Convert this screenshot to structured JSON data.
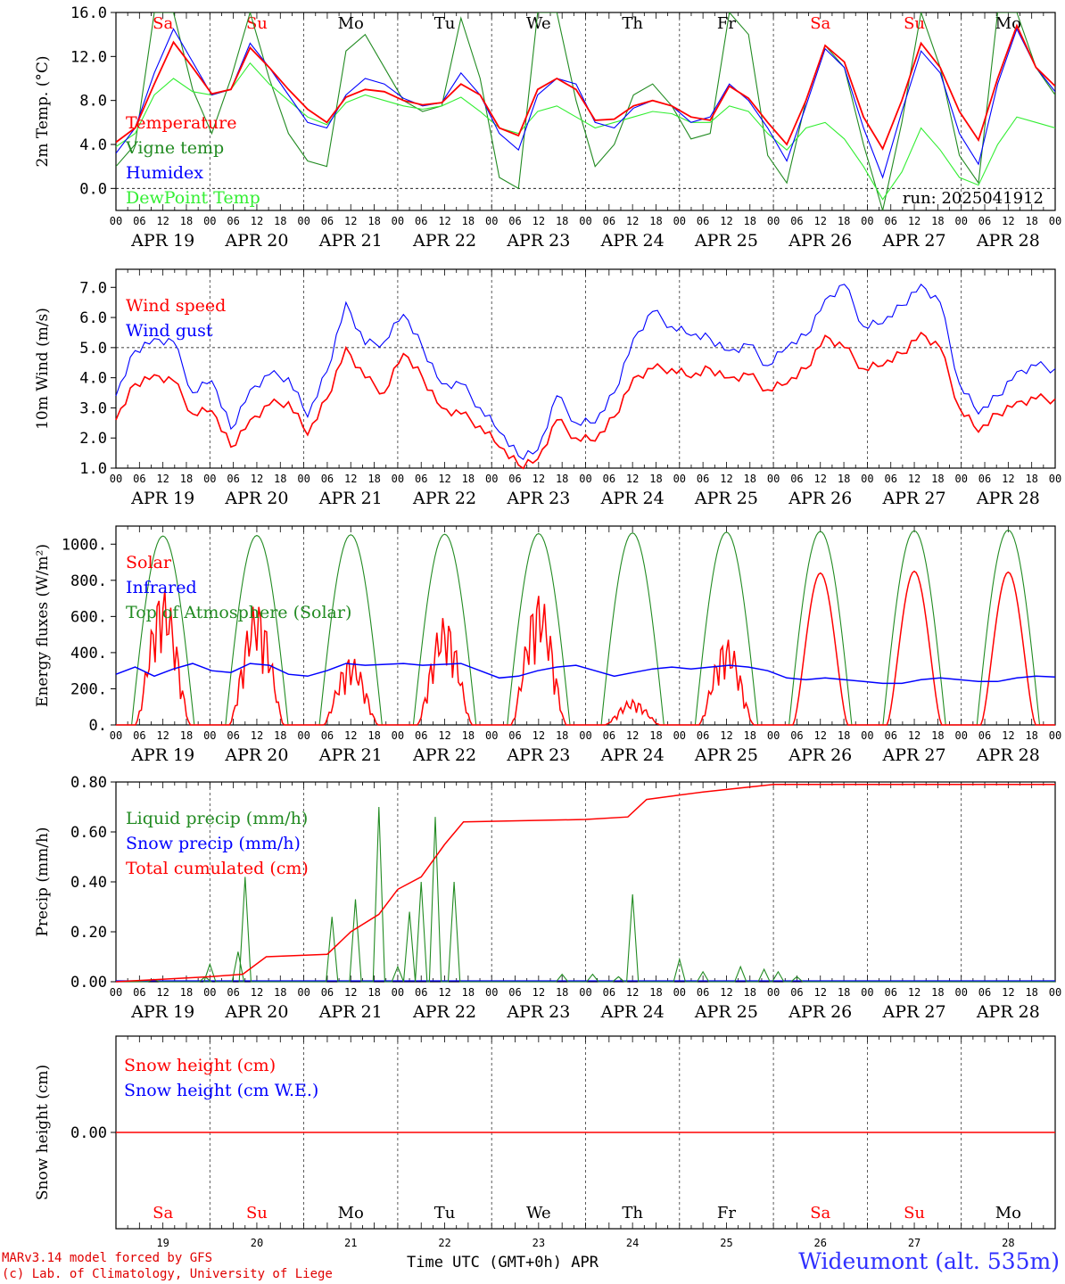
{
  "chart_data": [
    {
      "type": "line",
      "ylabel": "2m Temp. (°C)",
      "ylim": [
        -2,
        16
      ],
      "yticks": [
        "0.0",
        "4.0",
        "8.0",
        "12.0",
        "16.0"
      ],
      "run_label": "run: 2025041912",
      "legend": [
        "Temperature",
        "Vigne temp",
        "Humidex",
        "DewPoint Temp"
      ],
      "day_labels": [
        "Sa",
        "Su",
        "Mo",
        "Tu",
        "We",
        "Th",
        "Fr",
        "Sa",
        "Su",
        "Mo"
      ],
      "date_labels": [
        "APR 19",
        "APR 20",
        "APR 21",
        "APR 22",
        "APR 23",
        "APR 24",
        "APR 25",
        "APR 26",
        "APR 27",
        "APR 28"
      ],
      "x_step_hours": 6,
      "series": [
        {
          "name": "Temperature",
          "color": "#ff0000",
          "values": [
            4.2,
            5.5,
            9.5,
            13.3,
            11.0,
            8.6,
            9.0,
            12.8,
            11.0,
            9.0,
            7.2,
            6.0,
            8.3,
            9.0,
            8.8,
            8.0,
            7.6,
            7.8,
            9.5,
            8.5,
            5.5,
            4.8,
            9.0,
            10.0,
            9.0,
            6.2,
            6.3,
            7.5,
            8.0,
            7.5,
            6.5,
            6.2,
            9.3,
            8.2,
            6.0,
            4.0,
            8.0,
            13.0,
            11.5,
            6.5,
            3.6,
            8.0,
            13.2,
            11.0,
            7.0,
            4.4,
            10.0,
            14.8,
            11.0,
            9.3
          ]
        },
        {
          "name": "Vigne temp",
          "color": "#228b22",
          "values": [
            2.0,
            4.0,
            16.0,
            16.0,
            9.0,
            5.0,
            10.0,
            16.0,
            10.0,
            5.0,
            2.5,
            2.0,
            12.5,
            14.0,
            11.0,
            8.0,
            7.0,
            7.5,
            15.5,
            10.0,
            1.0,
            0.0,
            16.0,
            16.0,
            8.0,
            2.0,
            4.0,
            8.5,
            9.5,
            7.5,
            4.5,
            5.0,
            16.0,
            14.0,
            3.0,
            0.5,
            8.0,
            13.0,
            11.0,
            4.0,
            -2.0,
            6.0,
            16.0,
            11.0,
            3.0,
            0.5,
            16.0,
            16.0,
            11.0,
            8.5
          ]
        },
        {
          "name": "Humidex",
          "color": "#0000ff",
          "values": [
            3.2,
            5.5,
            10.5,
            14.5,
            11.5,
            8.5,
            9.0,
            13.2,
            11.0,
            8.5,
            6.0,
            5.5,
            8.5,
            10.0,
            9.5,
            8.2,
            7.5,
            7.8,
            10.5,
            8.5,
            5.0,
            3.5,
            8.5,
            10.0,
            9.5,
            6.0,
            5.5,
            7.3,
            8.0,
            7.5,
            6.0,
            6.5,
            9.5,
            8.0,
            5.5,
            2.5,
            7.5,
            12.7,
            11.0,
            5.5,
            1.0,
            7.0,
            12.5,
            10.5,
            5.0,
            2.2,
            9.5,
            14.5,
            11.0,
            8.8
          ]
        },
        {
          "name": "DewPoint Temp",
          "color": "#33ee33",
          "values": [
            3.8,
            5.0,
            8.5,
            10.0,
            8.8,
            8.5,
            9.0,
            11.4,
            9.5,
            8.0,
            6.5,
            5.8,
            7.8,
            8.5,
            8.0,
            7.5,
            7.2,
            7.5,
            8.3,
            7.0,
            5.5,
            5.0,
            7.0,
            7.5,
            6.5,
            5.5,
            6.0,
            6.5,
            7.0,
            6.8,
            6.0,
            6.0,
            7.5,
            7.0,
            5.0,
            3.5,
            5.5,
            6.0,
            4.5,
            2.0,
            -1.0,
            1.5,
            5.5,
            3.5,
            1.0,
            0.3,
            4.0,
            6.5,
            6.0,
            5.5
          ]
        }
      ]
    },
    {
      "type": "line",
      "ylabel": "10m Wind (m/s)",
      "ylim": [
        1,
        7.6
      ],
      "yticks": [
        "1.0",
        "2.0",
        "3.0",
        "4.0",
        "5.0",
        "6.0",
        "7.0"
      ],
      "reference_line": 5.0,
      "legend": [
        "Wind speed",
        "Wind gust"
      ],
      "date_labels": [
        "APR 19",
        "APR 20",
        "APR 21",
        "APR 22",
        "APR 23",
        "APR 24",
        "APR 25",
        "APR 26",
        "APR 27",
        "APR 28"
      ],
      "x_step_hours": 6,
      "series": [
        {
          "name": "Wind speed",
          "color": "#ff0000",
          "values": [
            2.6,
            3.8,
            4.1,
            3.9,
            2.8,
            2.9,
            1.7,
            2.6,
            3.1,
            3.2,
            2.1,
            3.3,
            5.0,
            4.0,
            3.5,
            4.8,
            4.0,
            3.0,
            2.8,
            2.4,
            1.7,
            1.1,
            1.3,
            2.6,
            2.0,
            1.9,
            2.7,
            4.0,
            4.3,
            4.3,
            4.0,
            4.3,
            4.0,
            4.1,
            3.6,
            3.8,
            4.3,
            5.4,
            5.0,
            4.3,
            4.4,
            4.8,
            5.5,
            5.0,
            3.0,
            2.2,
            2.8,
            3.2,
            3.3,
            3.3
          ]
        },
        {
          "name": "Wind gust",
          "color": "#0000ff",
          "values": [
            3.4,
            4.9,
            5.3,
            5.2,
            3.5,
            3.9,
            2.3,
            3.6,
            4.1,
            4.0,
            2.7,
            4.2,
            6.5,
            5.1,
            5.2,
            6.1,
            5.0,
            3.8,
            3.8,
            3.0,
            2.2,
            1.4,
            1.6,
            3.4,
            2.5,
            2.5,
            3.5,
            5.3,
            6.2,
            5.7,
            5.4,
            5.3,
            4.9,
            5.1,
            4.4,
            5.0,
            5.4,
            6.6,
            7.1,
            5.7,
            5.8,
            6.4,
            7.1,
            6.5,
            3.8,
            2.8,
            3.4,
            4.2,
            4.4,
            4.3
          ]
        }
      ]
    },
    {
      "type": "line",
      "ylabel": "Energy fluxes (W/m²)",
      "ylim": [
        0,
        1100
      ],
      "yticks": [
        "0.",
        "200.",
        "400.",
        "600.",
        "800.",
        "1000."
      ],
      "legend": [
        "Solar",
        "Infrared",
        "Top of Atmosphere (Solar)"
      ],
      "date_labels": [
        "APR 19",
        "APR 20",
        "APR 21",
        "APR 22",
        "APR 23",
        "APR 24",
        "APR 25",
        "APR 26",
        "APR 27",
        "APR 28"
      ],
      "toa_peaks": [
        1045,
        1048,
        1052,
        1055,
        1058,
        1062,
        1066,
        1070,
        1074,
        1078
      ],
      "solar_peaks": [
        760,
        680,
        380,
        600,
        730,
        140,
        480,
        840,
        850,
        845
      ],
      "infrared_start": 280,
      "series": [
        {
          "name": "Solar",
          "color": "#ff0000"
        },
        {
          "name": "Infrared",
          "color": "#0000ff",
          "values": [
            280,
            320,
            270,
            310,
            340,
            300,
            290,
            340,
            330,
            280,
            270,
            300,
            340,
            330,
            335,
            340,
            330,
            335,
            340,
            300,
            260,
            270,
            300,
            320,
            330,
            300,
            270,
            290,
            310,
            320,
            310,
            320,
            330,
            320,
            300,
            260,
            250,
            260,
            250,
            240,
            230,
            230,
            250,
            260,
            250,
            240,
            240,
            260,
            270,
            265
          ]
        },
        {
          "name": "Top of Atmosphere (Solar)",
          "color": "#228b22"
        }
      ]
    },
    {
      "type": "line",
      "ylabel": "Precip (mm/h)",
      "ylim": [
        0,
        0.8
      ],
      "yticks": [
        "0.00",
        "0.20",
        "0.40",
        "0.60",
        "0.80"
      ],
      "legend": [
        "Liquid precip (mm/h)",
        "Snow precip (mm/h)",
        "Total cumulated (cm)"
      ],
      "date_labels": [
        "APR 19",
        "APR 20",
        "APR 21",
        "APR 22",
        "APR 23",
        "APR 24",
        "APR 25",
        "APR 26",
        "APR 27",
        "APR 28"
      ],
      "liquid_spikes": [
        [
          1.6,
          0.01
        ],
        [
          3.8,
          0.02
        ],
        [
          4.0,
          0.07
        ],
        [
          5.2,
          0.12
        ],
        [
          5.5,
          0.42
        ],
        [
          9.2,
          0.26
        ],
        [
          10.2,
          0.33
        ],
        [
          11.2,
          0.7
        ],
        [
          12.0,
          0.06
        ],
        [
          12.5,
          0.28
        ],
        [
          13.0,
          0.4
        ],
        [
          13.6,
          0.66
        ],
        [
          14.4,
          0.4
        ],
        [
          19.0,
          0.03
        ],
        [
          20.3,
          0.03
        ],
        [
          21.4,
          0.02
        ],
        [
          22.0,
          0.35
        ],
        [
          24.0,
          0.09
        ],
        [
          25.0,
          0.04
        ],
        [
          26.6,
          0.06
        ],
        [
          27.6,
          0.05
        ],
        [
          28.2,
          0.04
        ],
        [
          29.0,
          0.02
        ]
      ],
      "cumulated": [
        [
          0,
          0
        ],
        [
          4,
          0.02
        ],
        [
          5.4,
          0.03
        ],
        [
          6.4,
          0.1
        ],
        [
          9.0,
          0.11
        ],
        [
          10.0,
          0.2
        ],
        [
          11.2,
          0.27
        ],
        [
          12.0,
          0.37
        ],
        [
          13.0,
          0.42
        ],
        [
          14.0,
          0.55
        ],
        [
          14.8,
          0.64
        ],
        [
          20.0,
          0.65
        ],
        [
          21.8,
          0.66
        ],
        [
          22.6,
          0.73
        ],
        [
          25.0,
          0.76
        ],
        [
          28.0,
          0.79
        ],
        [
          40,
          0.79
        ]
      ],
      "series": [
        {
          "name": "Liquid precip (mm/h)",
          "color": "#228b22"
        },
        {
          "name": "Snow precip (mm/h)",
          "color": "#0000ff"
        },
        {
          "name": "Total cumulated (cm)",
          "color": "#ff0000"
        }
      ]
    },
    {
      "type": "line",
      "ylabel": "Snow height (cm)",
      "yticks": [
        "0.00"
      ],
      "legend": [
        "Snow height (cm)",
        "Snow height (cm W.E.)"
      ],
      "day_labels": [
        "Sa",
        "Su",
        "Mo",
        "Tu",
        "We",
        "Th",
        "Fr",
        "Sa",
        "Su",
        "Mo"
      ],
      "date_numbers": [
        "19",
        "20",
        "21",
        "22",
        "23",
        "24",
        "25",
        "26",
        "27",
        "28"
      ],
      "series": [
        {
          "name": "Snow height (cm)",
          "color": "#ff0000",
          "values": [
            0,
            0
          ]
        },
        {
          "name": "Snow height (cm W.E.)",
          "color": "#0000ff",
          "values": [
            0,
            0
          ]
        }
      ]
    }
  ],
  "hour_labels": [
    "00",
    "06",
    "12",
    "18"
  ],
  "footer": {
    "credit_1": "MARv3.14 model forced by GFS",
    "credit_2": "(c) Lab. of Climatology, University of Liege",
    "axis_title": "Time UTC (GMT+0h) APR",
    "station": "Wideumont (alt. 535m)"
  },
  "colors": {
    "weekend_day": "#ff0000",
    "weekday": "#000000"
  }
}
